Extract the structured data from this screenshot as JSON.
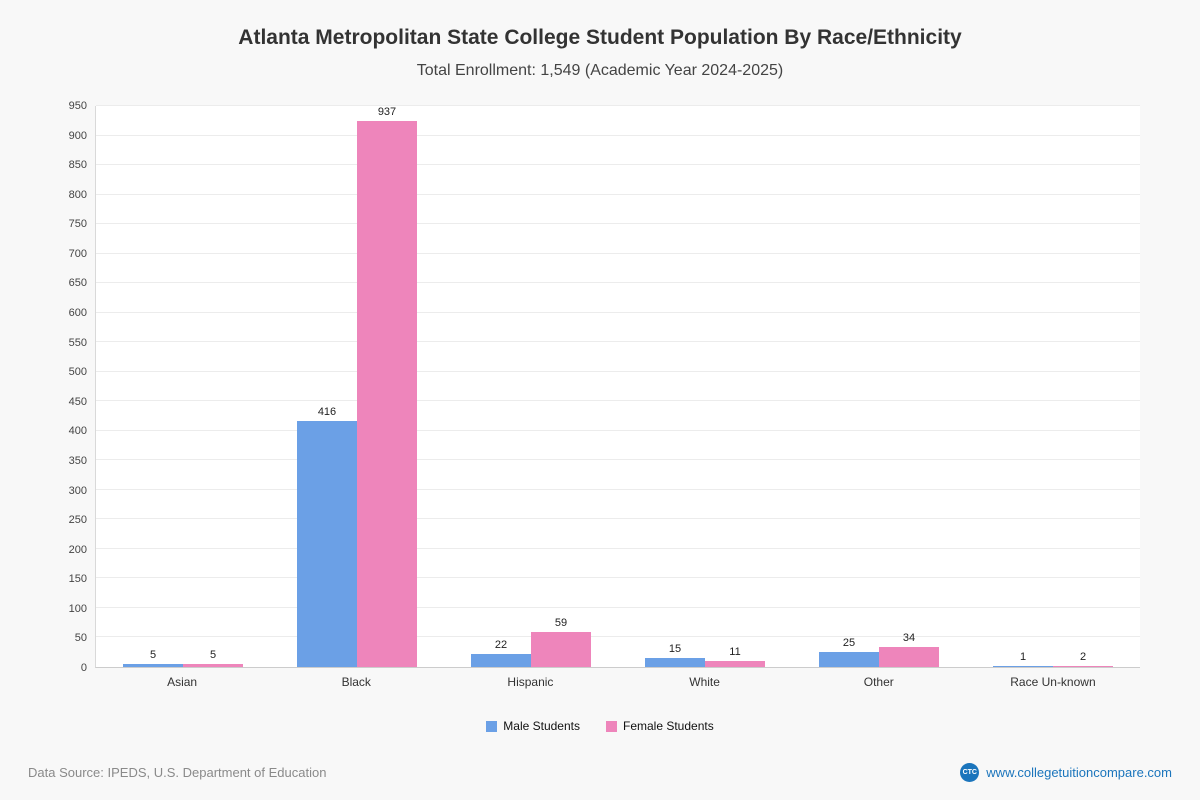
{
  "page": {
    "title": "Atlanta Metropolitan State College Student Population By Race/Ethnicity",
    "subtitle": "Total Enrollment: 1,549 (Academic Year 2024-2025)",
    "footer_source": "Data Source: IPEDS, U.S. Department of Education",
    "footer_site": "www.collegetuitioncompare.com",
    "logo_text": "CTC"
  },
  "chart_data": {
    "type": "bar",
    "title": "Atlanta Metropolitan State College Student Population By Race/Ethnicity",
    "subtitle": "Total Enrollment: 1,549 (Academic Year 2024-2025)",
    "categories": [
      "Asian",
      "Black",
      "Hispanic",
      "White",
      "Other",
      "Race Un-known"
    ],
    "series": [
      {
        "name": "Male Students",
        "color": "#6ba0e6",
        "values": [
          5,
          416,
          22,
          15,
          25,
          1
        ]
      },
      {
        "name": "Female Students",
        "color": "#ee85bb",
        "values": [
          5,
          937,
          59,
          11,
          34,
          2
        ]
      }
    ],
    "xlabel": "",
    "ylabel": "",
    "ylim": [
      0,
      950
    ],
    "ytick_step": 50,
    "grid": true,
    "legend_position": "bottom"
  }
}
